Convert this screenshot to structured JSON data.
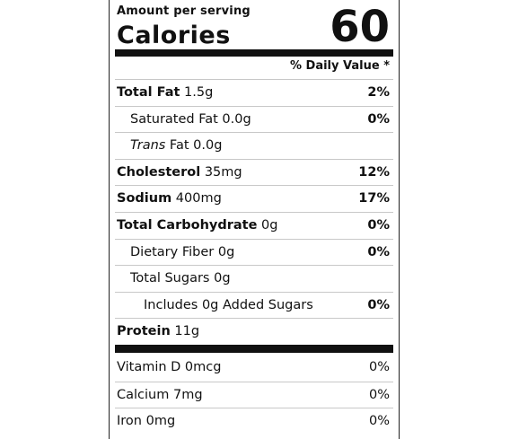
{
  "header": {
    "amount_per_serving": "Amount per serving",
    "calories_label": "Calories",
    "calories_value": "60",
    "daily_value_header": "% Daily Value *"
  },
  "nutrients": [
    {
      "bold": "Total Fat",
      "name": "",
      "amount": " 1.5g",
      "pct": "2%",
      "indent": 0
    },
    {
      "bold": "",
      "name": "Saturated Fat",
      "amount": " 0.0g",
      "pct": "0%",
      "indent": 1
    },
    {
      "bold": "",
      "italic": "Trans",
      "name": " Fat",
      "amount": " 0.0g",
      "pct": "",
      "indent": 1
    },
    {
      "bold": "Cholesterol",
      "name": "",
      "amount": " 35mg",
      "pct": "12%",
      "indent": 0
    },
    {
      "bold": "Sodium",
      "name": "",
      "amount": " 400mg",
      "pct": "17%",
      "indent": 0
    },
    {
      "bold": "Total Carbohydrate",
      "name": "",
      "amount": " 0g",
      "pct": "0%",
      "indent": 0
    },
    {
      "bold": "",
      "name": "Dietary Fiber",
      "amount": " 0g",
      "pct": "0%",
      "indent": 1
    },
    {
      "bold": "",
      "name": "Total Sugars",
      "amount": " 0g",
      "pct": "",
      "indent": 1
    },
    {
      "bold": "",
      "name": "Includes 0g Added Sugars",
      "amount": "",
      "pct": "0%",
      "indent": 2
    },
    {
      "bold": "Protein",
      "name": "",
      "amount": " 11g",
      "pct": "",
      "indent": 0
    }
  ],
  "vitamins": [
    {
      "name": "Vitamin D",
      "amount": " 0mcg",
      "pct": "0%"
    },
    {
      "name": "Calcium",
      "amount": " 7mg",
      "pct": "0%"
    },
    {
      "name": "Iron",
      "amount": " 0mg",
      "pct": "0%"
    }
  ]
}
